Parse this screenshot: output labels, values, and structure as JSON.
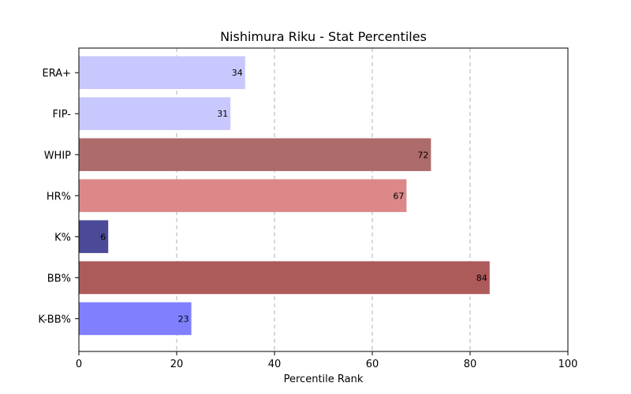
{
  "chart_data": {
    "type": "bar",
    "orientation": "horizontal",
    "title": "Nishimura Riku - Stat Percentiles",
    "xlabel": "Percentile Rank",
    "ylabel": "",
    "xlim": [
      0,
      100
    ],
    "xticks": [
      0,
      20,
      40,
      60,
      80,
      100
    ],
    "grid": "x-dashed",
    "categories": [
      "ERA+",
      "FIP-",
      "WHIP",
      "HR%",
      "K%",
      "BB%",
      "K-BB%"
    ],
    "values": [
      34,
      31,
      72,
      67,
      6,
      84,
      23
    ],
    "colors": [
      "#c8c8ff",
      "#c8c8ff",
      "#ae6b6b",
      "#dc8888",
      "#4a4a99",
      "#ad5a5b",
      "#8080ff"
    ]
  }
}
